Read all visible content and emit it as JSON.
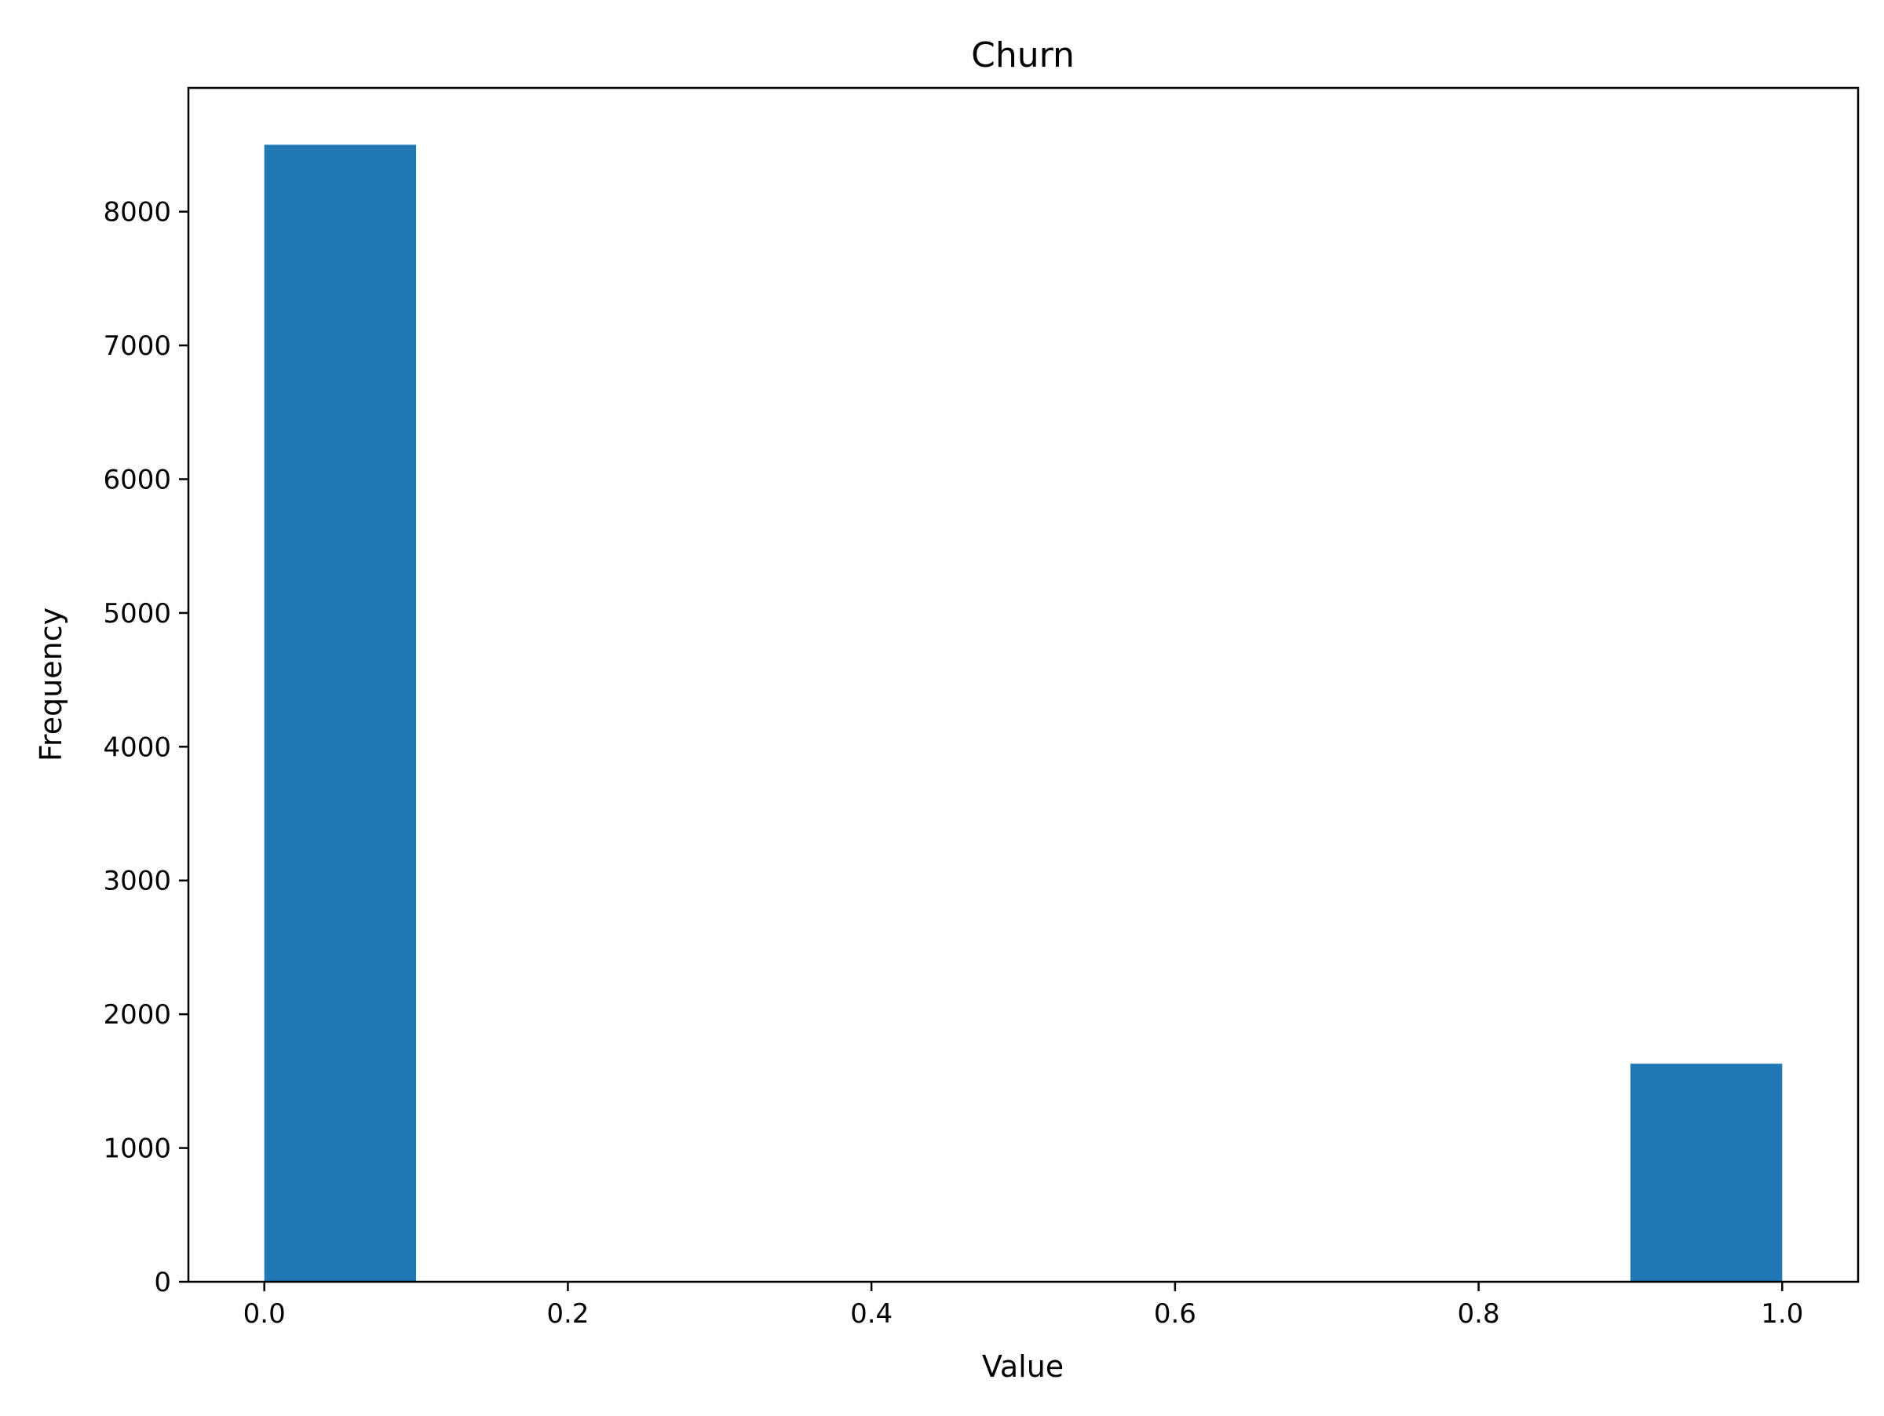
{
  "chart_data": {
    "type": "bar",
    "title": "Churn",
    "xlabel": "Value",
    "ylabel": "Frequency",
    "bins": [
      {
        "x0": 0.0,
        "x1": 0.1,
        "count": 8500
      },
      {
        "x0": 0.1,
        "x1": 0.2,
        "count": 0
      },
      {
        "x0": 0.2,
        "x1": 0.3,
        "count": 0
      },
      {
        "x0": 0.3,
        "x1": 0.4,
        "count": 0
      },
      {
        "x0": 0.4,
        "x1": 0.5,
        "count": 0
      },
      {
        "x0": 0.5,
        "x1": 0.6,
        "count": 0
      },
      {
        "x0": 0.6,
        "x1": 0.7,
        "count": 0
      },
      {
        "x0": 0.7,
        "x1": 0.8,
        "count": 0
      },
      {
        "x0": 0.8,
        "x1": 0.9,
        "count": 0
      },
      {
        "x0": 0.9,
        "x1": 1.0,
        "count": 1630
      }
    ],
    "xlim": [
      -0.05,
      1.05
    ],
    "ylim": [
      0,
      8925
    ],
    "xticks": [
      0.0,
      0.2,
      0.4,
      0.6,
      0.8,
      1.0
    ],
    "xtick_labels": [
      "0.0",
      "0.2",
      "0.4",
      "0.6",
      "0.8",
      "1.0"
    ],
    "yticks": [
      0,
      1000,
      2000,
      3000,
      4000,
      5000,
      6000,
      7000,
      8000
    ],
    "ytick_labels": [
      "0",
      "1000",
      "2000",
      "3000",
      "4000",
      "5000",
      "6000",
      "7000",
      "8000"
    ],
    "grid": false,
    "bar_color": "#1f77b4"
  }
}
